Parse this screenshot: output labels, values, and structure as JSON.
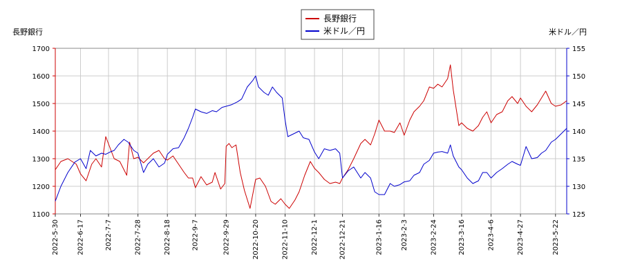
{
  "chart_data": {
    "type": "line",
    "title": "",
    "legend": {
      "position": "top-center"
    },
    "grid": true,
    "y_left": {
      "label": "長野銀行",
      "ylim": [
        1100,
        1700
      ],
      "ticks": [
        1100,
        1200,
        1300,
        1400,
        1500,
        1600,
        1700
      ],
      "tick_color": "#cc0000"
    },
    "y_right": {
      "label": "米ドル／円",
      "ylim": [
        125,
        155
      ],
      "ticks": [
        125,
        130,
        135,
        140,
        145,
        150,
        155
      ],
      "tick_color": "#0000cc"
    },
    "x": {
      "start": "2022-05-30",
      "end": "2023-05-30",
      "tick_labels": [
        "2022-5-30",
        "2022-6-17",
        "2022-7-7",
        "2022-7-28",
        "2022-8-18",
        "2022-9-7",
        "2022-9-29",
        "2022-10-20",
        "2022-11-10",
        "2022-12-1",
        "2022-12-21",
        "2023-1-16",
        "2023-2-3",
        "2023-2-24",
        "2023-3-16",
        "2023-4-6",
        "2023-4-27",
        "2023-5-22"
      ]
    },
    "series": [
      {
        "name": "長野銀行",
        "axis": "left",
        "color": "#cc0000",
        "points": [
          [
            "2022-05-30",
            1260
          ],
          [
            "2022-06-03",
            1290
          ],
          [
            "2022-06-08",
            1300
          ],
          [
            "2022-06-14",
            1280
          ],
          [
            "2022-06-17",
            1245
          ],
          [
            "2022-06-21",
            1220
          ],
          [
            "2022-06-25",
            1280
          ],
          [
            "2022-06-28",
            1300
          ],
          [
            "2022-07-02",
            1270
          ],
          [
            "2022-07-05",
            1380
          ],
          [
            "2022-07-08",
            1340
          ],
          [
            "2022-07-11",
            1300
          ],
          [
            "2022-07-15",
            1290
          ],
          [
            "2022-07-20",
            1240
          ],
          [
            "2022-07-22",
            1360
          ],
          [
            "2022-07-25",
            1300
          ],
          [
            "2022-07-28",
            1305
          ],
          [
            "2022-08-01",
            1285
          ],
          [
            "2022-08-04",
            1300
          ],
          [
            "2022-08-08",
            1320
          ],
          [
            "2022-08-12",
            1330
          ],
          [
            "2022-08-16",
            1300
          ],
          [
            "2022-08-18",
            1295
          ],
          [
            "2022-08-22",
            1310
          ],
          [
            "2022-08-26",
            1280
          ],
          [
            "2022-08-30",
            1250
          ],
          [
            "2022-09-02",
            1230
          ],
          [
            "2022-09-05",
            1230
          ],
          [
            "2022-09-07",
            1195
          ],
          [
            "2022-09-11",
            1235
          ],
          [
            "2022-09-15",
            1205
          ],
          [
            "2022-09-19",
            1215
          ],
          [
            "2022-09-21",
            1250
          ],
          [
            "2022-09-25",
            1190
          ],
          [
            "2022-09-28",
            1210
          ],
          [
            "2022-09-29",
            1345
          ],
          [
            "2022-10-01",
            1355
          ],
          [
            "2022-10-03",
            1340
          ],
          [
            "2022-10-06",
            1350
          ],
          [
            "2022-10-09",
            1250
          ],
          [
            "2022-10-12",
            1185
          ],
          [
            "2022-10-16",
            1120
          ],
          [
            "2022-10-20",
            1225
          ],
          [
            "2022-10-23",
            1230
          ],
          [
            "2022-10-27",
            1200
          ],
          [
            "2022-10-31",
            1145
          ],
          [
            "2022-11-03",
            1135
          ],
          [
            "2022-11-07",
            1155
          ],
          [
            "2022-11-10",
            1135
          ],
          [
            "2022-11-13",
            1120
          ],
          [
            "2022-11-17",
            1150
          ],
          [
            "2022-11-20",
            1180
          ],
          [
            "2022-11-24",
            1240
          ],
          [
            "2022-11-28",
            1290
          ],
          [
            "2022-12-01",
            1265
          ],
          [
            "2022-12-04",
            1250
          ],
          [
            "2022-12-08",
            1225
          ],
          [
            "2022-12-12",
            1210
          ],
          [
            "2022-12-16",
            1215
          ],
          [
            "2022-12-19",
            1210
          ],
          [
            "2022-12-21",
            1230
          ],
          [
            "2022-12-25",
            1260
          ],
          [
            "2022-12-29",
            1300
          ],
          [
            "2023-01-03",
            1355
          ],
          [
            "2023-01-06",
            1370
          ],
          [
            "2023-01-10",
            1350
          ],
          [
            "2023-01-13",
            1390
          ],
          [
            "2023-01-16",
            1440
          ],
          [
            "2023-01-20",
            1400
          ],
          [
            "2023-01-24",
            1400
          ],
          [
            "2023-01-27",
            1395
          ],
          [
            "2023-01-31",
            1430
          ],
          [
            "2023-02-03",
            1385
          ],
          [
            "2023-02-07",
            1440
          ],
          [
            "2023-02-10",
            1470
          ],
          [
            "2023-02-14",
            1490
          ],
          [
            "2023-02-17",
            1510
          ],
          [
            "2023-02-21",
            1560
          ],
          [
            "2023-02-24",
            1555
          ],
          [
            "2023-02-27",
            1570
          ],
          [
            "2023-03-02",
            1560
          ],
          [
            "2023-03-06",
            1590
          ],
          [
            "2023-03-08",
            1640
          ],
          [
            "2023-03-10",
            1550
          ],
          [
            "2023-03-14",
            1420
          ],
          [
            "2023-03-16",
            1430
          ],
          [
            "2023-03-20",
            1410
          ],
          [
            "2023-03-24",
            1400
          ],
          [
            "2023-03-28",
            1420
          ],
          [
            "2023-03-31",
            1450
          ],
          [
            "2023-04-03",
            1470
          ],
          [
            "2023-04-06",
            1430
          ],
          [
            "2023-04-10",
            1460
          ],
          [
            "2023-04-14",
            1470
          ],
          [
            "2023-04-18",
            1510
          ],
          [
            "2023-04-21",
            1525
          ],
          [
            "2023-04-25",
            1500
          ],
          [
            "2023-04-27",
            1520
          ],
          [
            "2023-05-01",
            1490
          ],
          [
            "2023-05-05",
            1470
          ],
          [
            "2023-05-09",
            1495
          ],
          [
            "2023-05-12",
            1520
          ],
          [
            "2023-05-15",
            1545
          ],
          [
            "2023-05-19",
            1500
          ],
          [
            "2023-05-22",
            1490
          ],
          [
            "2023-05-26",
            1495
          ],
          [
            "2023-05-30",
            1510
          ]
        ]
      },
      {
        "name": "米ドル／円",
        "axis": "right",
        "color": "#0000cc",
        "points": [
          [
            "2022-05-30",
            127.3
          ],
          [
            "2022-06-03",
            130.0
          ],
          [
            "2022-06-08",
            132.5
          ],
          [
            "2022-06-13",
            134.4
          ],
          [
            "2022-06-17",
            135.0
          ],
          [
            "2022-06-21",
            133.2
          ],
          [
            "2022-06-24",
            136.5
          ],
          [
            "2022-06-28",
            135.5
          ],
          [
            "2022-07-02",
            136.0
          ],
          [
            "2022-07-05",
            135.8
          ],
          [
            "2022-07-08",
            136.2
          ],
          [
            "2022-07-11",
            136.5
          ],
          [
            "2022-07-14",
            137.5
          ],
          [
            "2022-07-18",
            138.5
          ],
          [
            "2022-07-21",
            138.0
          ],
          [
            "2022-07-25",
            136.5
          ],
          [
            "2022-07-28",
            136.0
          ],
          [
            "2022-08-01",
            132.5
          ],
          [
            "2022-08-04",
            134.0
          ],
          [
            "2022-08-08",
            135.0
          ],
          [
            "2022-08-12",
            133.5
          ],
          [
            "2022-08-16",
            134.2
          ],
          [
            "2022-08-18",
            135.8
          ],
          [
            "2022-08-22",
            136.8
          ],
          [
            "2022-08-26",
            137.0
          ],
          [
            "2022-08-30",
            138.8
          ],
          [
            "2022-09-02",
            140.5
          ],
          [
            "2022-09-05",
            142.5
          ],
          [
            "2022-09-07",
            144.0
          ],
          [
            "2022-09-11",
            143.5
          ],
          [
            "2022-09-15",
            143.2
          ],
          [
            "2022-09-19",
            143.7
          ],
          [
            "2022-09-22",
            143.5
          ],
          [
            "2022-09-26",
            144.3
          ],
          [
            "2022-09-29",
            144.5
          ],
          [
            "2022-10-03",
            144.8
          ],
          [
            "2022-10-07",
            145.3
          ],
          [
            "2022-10-10",
            145.8
          ],
          [
            "2022-10-14",
            148.0
          ],
          [
            "2022-10-18",
            149.2
          ],
          [
            "2022-10-20",
            150.0
          ],
          [
            "2022-10-22",
            148.0
          ],
          [
            "2022-10-26",
            147.0
          ],
          [
            "2022-10-29",
            146.5
          ],
          [
            "2022-11-01",
            148.0
          ],
          [
            "2022-11-04",
            147.0
          ],
          [
            "2022-11-08",
            146.0
          ],
          [
            "2022-11-10",
            142.0
          ],
          [
            "2022-11-12",
            139.0
          ],
          [
            "2022-11-16",
            139.5
          ],
          [
            "2022-11-20",
            140.0
          ],
          [
            "2022-11-23",
            138.8
          ],
          [
            "2022-11-27",
            138.5
          ],
          [
            "2022-12-01",
            136.2
          ],
          [
            "2022-12-04",
            135.0
          ],
          [
            "2022-12-08",
            136.8
          ],
          [
            "2022-12-12",
            136.5
          ],
          [
            "2022-12-16",
            136.8
          ],
          [
            "2022-12-19",
            136.0
          ],
          [
            "2022-12-21",
            131.5
          ],
          [
            "2022-12-25",
            132.8
          ],
          [
            "2022-12-29",
            133.5
          ],
          [
            "2023-01-03",
            131.5
          ],
          [
            "2023-01-06",
            132.5
          ],
          [
            "2023-01-10",
            131.5
          ],
          [
            "2023-01-13",
            129.0
          ],
          [
            "2023-01-16",
            128.5
          ],
          [
            "2023-01-20",
            128.5
          ],
          [
            "2023-01-24",
            130.5
          ],
          [
            "2023-01-27",
            130.0
          ],
          [
            "2023-01-31",
            130.3
          ],
          [
            "2023-02-03",
            130.8
          ],
          [
            "2023-02-07",
            131.0
          ],
          [
            "2023-02-10",
            132.0
          ],
          [
            "2023-02-14",
            132.5
          ],
          [
            "2023-02-17",
            134.0
          ],
          [
            "2023-02-21",
            134.7
          ],
          [
            "2023-02-24",
            136.0
          ],
          [
            "2023-02-27",
            136.2
          ],
          [
            "2023-03-02",
            136.3
          ],
          [
            "2023-03-06",
            136.0
          ],
          [
            "2023-03-08",
            137.5
          ],
          [
            "2023-03-10",
            135.5
          ],
          [
            "2023-03-14",
            133.5
          ],
          [
            "2023-03-16",
            133.0
          ],
          [
            "2023-03-20",
            131.5
          ],
          [
            "2023-03-24",
            130.5
          ],
          [
            "2023-03-28",
            131.0
          ],
          [
            "2023-03-31",
            132.5
          ],
          [
            "2023-04-03",
            132.5
          ],
          [
            "2023-04-06",
            131.5
          ],
          [
            "2023-04-10",
            132.5
          ],
          [
            "2023-04-14",
            133.2
          ],
          [
            "2023-04-18",
            134.0
          ],
          [
            "2023-04-21",
            134.5
          ],
          [
            "2023-04-25",
            134.0
          ],
          [
            "2023-04-27",
            133.8
          ],
          [
            "2023-05-01",
            137.2
          ],
          [
            "2023-05-05",
            135.0
          ],
          [
            "2023-05-09",
            135.2
          ],
          [
            "2023-05-12",
            136.0
          ],
          [
            "2023-05-15",
            136.5
          ],
          [
            "2023-05-19",
            138.0
          ],
          [
            "2023-05-22",
            138.5
          ],
          [
            "2023-05-26",
            139.5
          ],
          [
            "2023-05-30",
            140.5
          ]
        ]
      }
    ]
  }
}
